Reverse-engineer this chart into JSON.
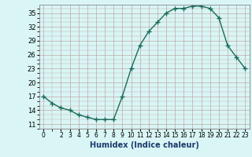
{
  "x": [
    0,
    1,
    2,
    3,
    4,
    5,
    6,
    7,
    8,
    9,
    10,
    11,
    12,
    13,
    14,
    15,
    16,
    17,
    18,
    19,
    20,
    21,
    22,
    23
  ],
  "y": [
    17,
    15.5,
    14.5,
    14,
    13,
    12.5,
    12,
    12,
    12,
    17,
    23,
    28,
    31,
    33,
    35,
    36,
    36,
    36.5,
    36.5,
    36,
    34,
    28,
    25.5,
    23
  ],
  "title": "",
  "xlabel": "Humidex (Indice chaleur)",
  "ylabel": "",
  "line_color": "#1a6b5a",
  "marker": "+",
  "marker_size": 4,
  "bg_color": "#d9f5f5",
  "grid_major_color": "#c0a8a8",
  "grid_minor_color": "#c0a8a8",
  "xlim": [
    -0.5,
    23.5
  ],
  "ylim": [
    10.0,
    36.8
  ],
  "yticks": [
    11,
    14,
    17,
    20,
    23,
    26,
    29,
    32,
    35
  ],
  "xticks": [
    0,
    2,
    3,
    4,
    5,
    6,
    7,
    8,
    9,
    10,
    11,
    12,
    13,
    14,
    15,
    16,
    17,
    18,
    19,
    20,
    21,
    22,
    23
  ],
  "xtick_labels": [
    "0",
    "2",
    "3",
    "4",
    "5",
    "6",
    "7",
    "8",
    "9",
    "10",
    "11",
    "12",
    "13",
    "14",
    "15",
    "16",
    "17",
    "18",
    "19",
    "20",
    "21",
    "22",
    "23"
  ],
  "xlabel_color": "#1a3a6a",
  "xlabel_fontsize": 7,
  "tick_fontsize": 5.5,
  "ytick_fontsize": 6,
  "linewidth": 1.0
}
